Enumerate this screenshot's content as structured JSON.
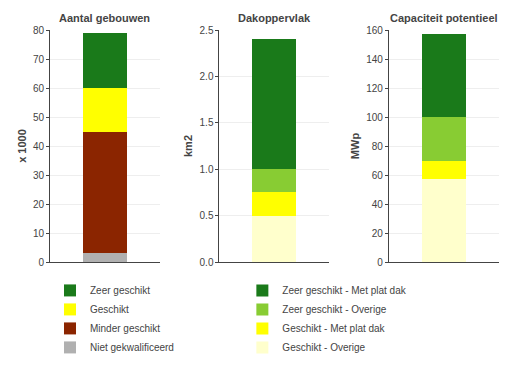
{
  "chart_data": [
    {
      "type": "bar",
      "title": "Aantal gebouwen",
      "ylabel": "x 1000",
      "categories": [
        null
      ],
      "stacked": true,
      "grid": true,
      "legend": "bottom left",
      "ylim": [
        0,
        80
      ],
      "yticks": [
        0,
        10,
        20,
        30,
        40,
        50,
        60,
        70,
        80
      ],
      "series": [
        {
          "name": "Niet gekwalificeerd",
          "color": "#b0b0b0",
          "values": [
            3
          ]
        },
        {
          "name": "Minder geschikt",
          "color": "#8B2500",
          "values": [
            42
          ]
        },
        {
          "name": "Geschikt",
          "color": "#FFFF00",
          "values": [
            15
          ]
        },
        {
          "name": "Zeer geschikt",
          "color": "#1a7a1a",
          "values": [
            19
          ]
        }
      ]
    },
    {
      "type": "bar",
      "title": "Dakoppervlak",
      "ylabel": "km2",
      "categories": [
        null
      ],
      "stacked": true,
      "grid": true,
      "legend": "bottom right",
      "ylim": [
        0,
        2.5
      ],
      "yticks": [
        {
          "value": 0,
          "label": "0.0"
        },
        0.5,
        {
          "value": 1,
          "label": "1.0"
        },
        1.5,
        {
          "value": 2,
          "label": "2.0"
        },
        2.5
      ],
      "series": [
        {
          "name": "Geschikt - Overige",
          "color": "#ffffcc",
          "values": [
            0.5
          ]
        },
        {
          "name": "Geschikt - Met plat dak",
          "color": "#FFFF00",
          "values": [
            0.25
          ]
        },
        {
          "name": "Zeer geschikt - Overige",
          "color": "#88cc33",
          "values": [
            0.25
          ]
        },
        {
          "name": "Zeer geschikt - Met plat dak",
          "color": "#1a7a1a",
          "values": [
            1.4
          ]
        }
      ]
    },
    {
      "type": "bar",
      "title": "Capaciteit potentieel",
      "ylabel": "MWp",
      "categories": [
        null
      ],
      "stacked": true,
      "grid": true,
      "legend": false,
      "ylim": [
        0,
        160
      ],
      "yticks": [
        0,
        20,
        40,
        60,
        80,
        100,
        120,
        140,
        160
      ],
      "series": [
        {
          "name": "Geschikt - Overige",
          "color": "#ffffcc",
          "values": [
            57
          ]
        },
        {
          "name": "Geschikt - Met plat dak",
          "color": "#FFFF00",
          "values": [
            13
          ]
        },
        {
          "name": "Zeer geschikt - Overige",
          "color": "#88cc33",
          "values": [
            30
          ]
        },
        {
          "name": "Zeer geschikt - Met plat dak",
          "color": "#1a7a1a",
          "values": [
            57
          ]
        }
      ]
    }
  ]
}
